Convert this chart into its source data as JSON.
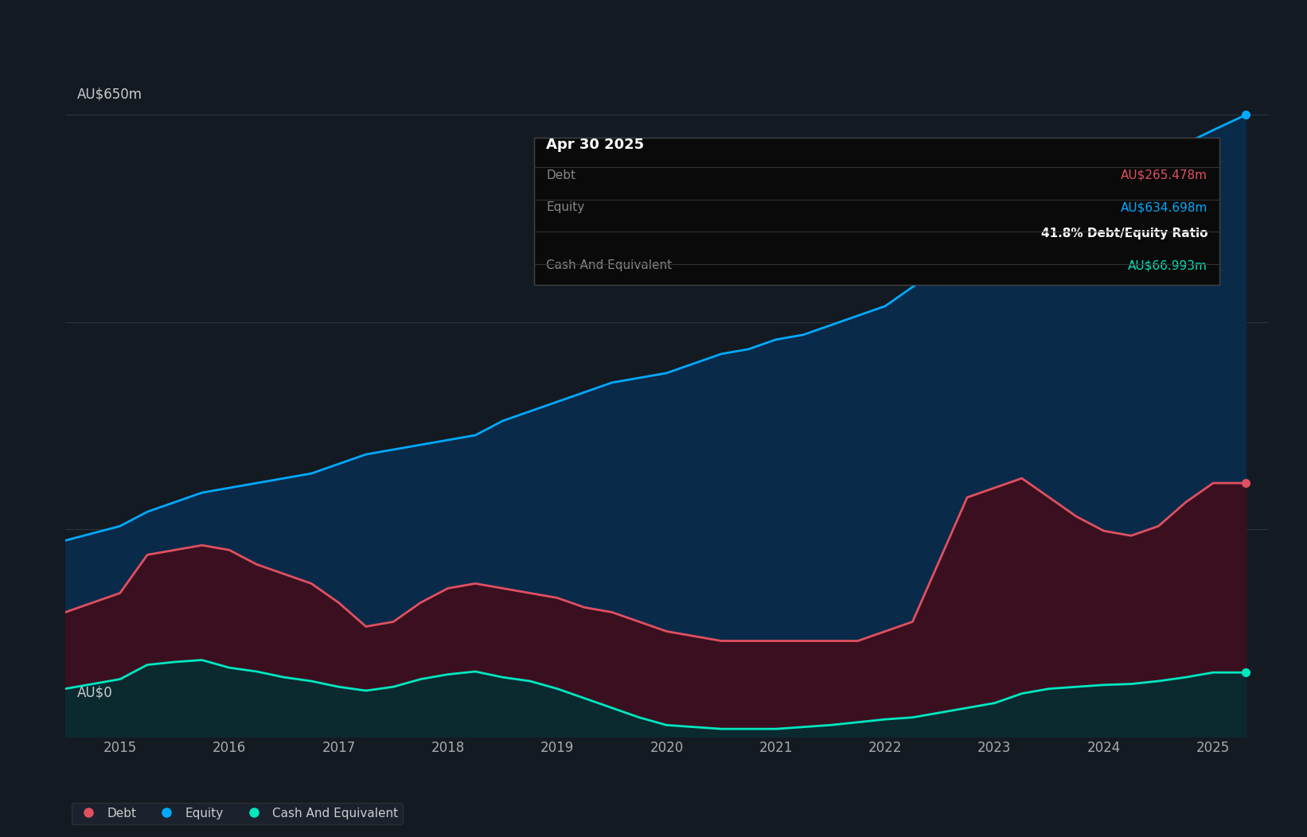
{
  "bg_color": "#141a22",
  "plot_bg_color": "#141a22",
  "grid_color": "#2a3340",
  "equity_color": "#00aaff",
  "debt_color": "#e05060",
  "cash_color": "#00e8c0",
  "equity_fill": "#0a2a4a",
  "debt_fill": "#3a1020",
  "cash_fill": "#0a2a30",
  "ylabel_top": "AU$650m",
  "ylabel_bottom": "AU$0",
  "tooltip_bg": "#0a0a0a",
  "tooltip_title": "Apr 30 2025",
  "tooltip_debt_label": "Debt",
  "tooltip_debt_value": "AU$265.478m",
  "tooltip_equity_label": "Equity",
  "tooltip_equity_value": "AU$634.698m",
  "tooltip_ratio": "41.8% Debt/Equity Ratio",
  "tooltip_cash_label": "Cash And Equivalent",
  "tooltip_cash_value": "AU$66.993m",
  "legend_debt": "Debt",
  "legend_equity": "Equity",
  "legend_cash": "Cash And Equivalent",
  "x_ticks": [
    2015,
    2016,
    2017,
    2018,
    2019,
    2020,
    2021,
    2022,
    2023,
    2024,
    2025
  ],
  "ylim": [
    0,
    700
  ],
  "xlim_start": 2014.5,
  "xlim_end": 2025.5,
  "equity_data": {
    "x": [
      2014.5,
      2015.0,
      2015.25,
      2015.5,
      2015.75,
      2016.0,
      2016.25,
      2016.5,
      2016.75,
      2017.0,
      2017.25,
      2017.5,
      2017.75,
      2018.0,
      2018.25,
      2018.5,
      2018.75,
      2019.0,
      2019.25,
      2019.5,
      2019.75,
      2020.0,
      2020.25,
      2020.5,
      2020.75,
      2021.0,
      2021.25,
      2021.5,
      2021.75,
      2022.0,
      2022.25,
      2022.5,
      2022.75,
      2023.0,
      2023.25,
      2023.5,
      2023.75,
      2024.0,
      2024.25,
      2024.5,
      2024.75,
      2025.0,
      2025.3
    ],
    "y": [
      205,
      220,
      235,
      245,
      255,
      260,
      265,
      270,
      275,
      285,
      295,
      300,
      305,
      310,
      315,
      330,
      340,
      350,
      360,
      370,
      375,
      380,
      390,
      400,
      405,
      415,
      420,
      430,
      440,
      450,
      470,
      490,
      510,
      530,
      560,
      575,
      580,
      590,
      600,
      610,
      620,
      634,
      650
    ]
  },
  "debt_data": {
    "x": [
      2014.5,
      2015.0,
      2015.25,
      2015.5,
      2015.75,
      2016.0,
      2016.25,
      2016.5,
      2016.75,
      2017.0,
      2017.25,
      2017.5,
      2017.75,
      2018.0,
      2018.25,
      2018.5,
      2018.75,
      2019.0,
      2019.25,
      2019.5,
      2019.75,
      2020.0,
      2020.25,
      2020.5,
      2020.75,
      2021.0,
      2021.25,
      2021.5,
      2021.75,
      2022.0,
      2022.25,
      2022.5,
      2022.75,
      2023.0,
      2023.25,
      2023.5,
      2023.75,
      2024.0,
      2024.25,
      2024.5,
      2024.75,
      2025.0,
      2025.3
    ],
    "y": [
      130,
      150,
      190,
      195,
      200,
      195,
      180,
      170,
      160,
      140,
      115,
      120,
      140,
      155,
      160,
      155,
      150,
      145,
      135,
      130,
      120,
      110,
      105,
      100,
      100,
      100,
      100,
      100,
      100,
      110,
      120,
      185,
      250,
      260,
      270,
      250,
      230,
      215,
      210,
      220,
      245,
      265,
      265
    ]
  },
  "cash_data": {
    "x": [
      2014.5,
      2015.0,
      2015.25,
      2015.5,
      2015.75,
      2016.0,
      2016.25,
      2016.5,
      2016.75,
      2017.0,
      2017.25,
      2017.5,
      2017.75,
      2018.0,
      2018.25,
      2018.5,
      2018.75,
      2019.0,
      2019.25,
      2019.5,
      2019.75,
      2020.0,
      2020.25,
      2020.5,
      2020.75,
      2021.0,
      2021.25,
      2021.5,
      2021.75,
      2022.0,
      2022.25,
      2022.5,
      2022.75,
      2023.0,
      2023.25,
      2023.5,
      2023.75,
      2024.0,
      2024.25,
      2024.5,
      2024.75,
      2025.0,
      2025.3
    ],
    "y": [
      50,
      60,
      75,
      78,
      80,
      72,
      68,
      62,
      58,
      52,
      48,
      52,
      60,
      65,
      68,
      62,
      58,
      50,
      40,
      30,
      20,
      12,
      10,
      8,
      8,
      8,
      10,
      12,
      15,
      18,
      20,
      25,
      30,
      35,
      45,
      50,
      52,
      54,
      55,
      58,
      62,
      67,
      67
    ]
  }
}
